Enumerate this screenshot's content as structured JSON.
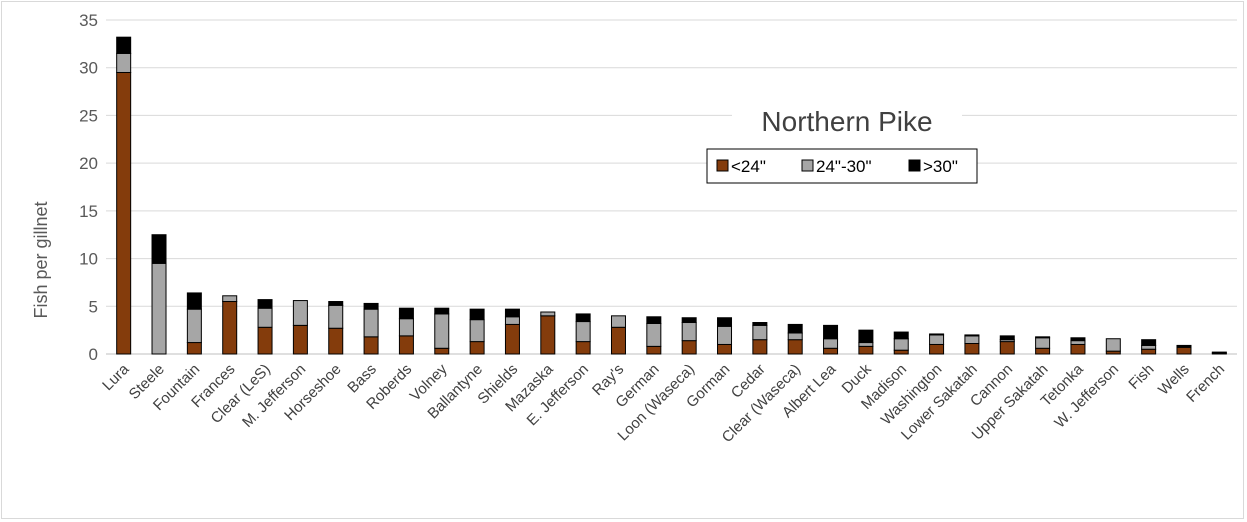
{
  "chart_data": {
    "type": "bar",
    "stacked": true,
    "title": "Northern Pike",
    "xlabel": "",
    "ylabel": "Fish per gillnet",
    "ylim": [
      0,
      35
    ],
    "yticks": [
      0,
      5,
      10,
      15,
      20,
      25,
      30,
      35
    ],
    "grid": true,
    "legend_position": "top-right",
    "categories": [
      "Lura",
      "Steele",
      "Fountain",
      "Frances",
      "Clear (LeS)",
      "M. Jefferson",
      "Horseshoe",
      "Bass",
      "Roberds",
      "Volney",
      "Ballantyne",
      "Shields",
      "Mazaska",
      "E. Jefferson",
      "Ray's",
      "German",
      "Loon (Waseca)",
      "Gorman",
      "Cedar",
      "Clear (Waseca)",
      "Albert Lea",
      "Duck",
      "Madison",
      "Washington",
      "Lower Sakatah",
      "Cannon",
      "Upper Sakatah",
      "Tetonka",
      "W. Jefferson",
      "Fish",
      "Wells",
      "French"
    ],
    "series": [
      {
        "name": "<24\"",
        "color": "#843c0c",
        "values": [
          29.5,
          0,
          1.2,
          5.5,
          2.8,
          3.0,
          2.7,
          1.8,
          1.9,
          0.6,
          1.3,
          3.1,
          4.0,
          1.3,
          2.8,
          0.8,
          1.4,
          1.0,
          1.5,
          1.5,
          0.6,
          0.8,
          0.4,
          1.0,
          1.1,
          1.3,
          0.6,
          1.0,
          0.3,
          0.5,
          0.7,
          0.1
        ]
      },
      {
        "name": "24\"-30\"",
        "color": "#a6a6a6",
        "values": [
          2.0,
          9.5,
          3.5,
          0.6,
          2.0,
          2.6,
          2.4,
          2.9,
          1.8,
          3.6,
          2.3,
          0.8,
          0.4,
          2.1,
          1.2,
          2.4,
          1.9,
          1.9,
          1.5,
          0.7,
          1.0,
          0.4,
          1.2,
          1.0,
          0.8,
          0.2,
          1.1,
          0.4,
          1.3,
          0.4,
          0.1,
          0.0
        ]
      },
      {
        "name": ">30\"",
        "color": "#000000",
        "values": [
          1.7,
          3.0,
          1.7,
          0.0,
          0.9,
          0.0,
          0.4,
          0.6,
          1.1,
          0.6,
          1.1,
          0.8,
          0.0,
          0.8,
          0.0,
          0.7,
          0.5,
          0.9,
          0.3,
          0.9,
          1.4,
          1.3,
          0.7,
          0.1,
          0.1,
          0.4,
          0.1,
          0.3,
          0.0,
          0.6,
          0.1,
          0.1
        ]
      }
    ]
  }
}
